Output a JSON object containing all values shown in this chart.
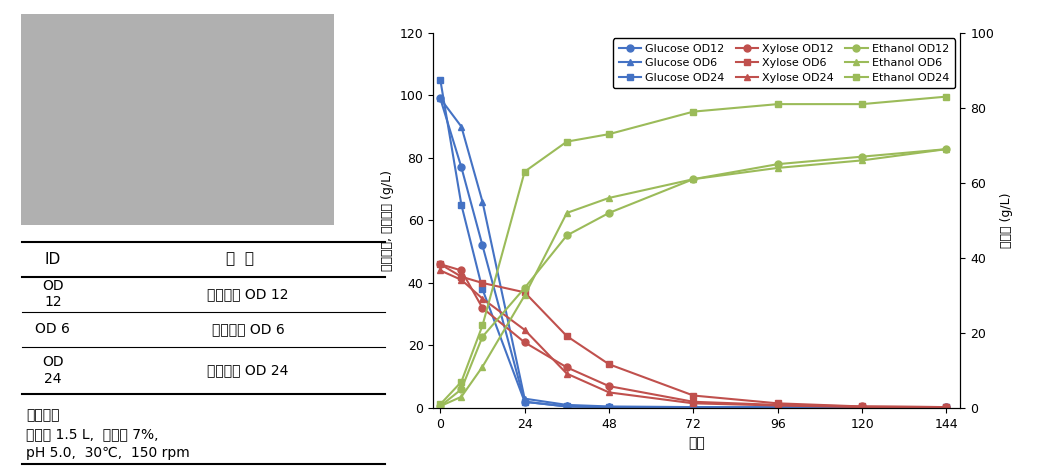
{
  "time": [
    0,
    6,
    12,
    24,
    36,
    48,
    72,
    96,
    120,
    144
  ],
  "glucose_od12": [
    99,
    77,
    52,
    2,
    0.5,
    0.3,
    0.2,
    0.2,
    0.2,
    0.2
  ],
  "glucose_od6": [
    99,
    90,
    66,
    3,
    1.0,
    0.5,
    0.3,
    0.2,
    0.2,
    0.2
  ],
  "glucose_od24": [
    105,
    65,
    38,
    2,
    0.5,
    0.3,
    0.2,
    0.2,
    0.2,
    0.2
  ],
  "xylose_od12": [
    46,
    44,
    32,
    21,
    13,
    7,
    2,
    1,
    0.5,
    0.3
  ],
  "xylose_od6": [
    46,
    42,
    40,
    37,
    23,
    14,
    4,
    1.5,
    0.5,
    0.3
  ],
  "xylose_od24": [
    44,
    41,
    35,
    25,
    11,
    5,
    1.5,
    0.8,
    0.3,
    0.2
  ],
  "ethanol_od12": [
    0.5,
    5,
    19,
    32,
    46,
    52,
    61,
    65,
    67,
    69
  ],
  "ethanol_od6": [
    0.5,
    3,
    11,
    30,
    52,
    56,
    61,
    64,
    66,
    69
  ],
  "ethanol_od24": [
    1,
    7,
    22,
    63,
    71,
    73,
    79,
    81,
    81,
    83
  ],
  "glucose_color": "#4472c4",
  "xylose_color": "#c0504d",
  "ethanol_color": "#9bbb59",
  "legend_entries": [
    "Glucose OD12",
    "Glucose OD6",
    "Glucose OD24",
    "Xylose OD12",
    "Xylose OD6",
    "Xylose OD24",
    "Ethanol OD12",
    "Ethanol OD6",
    "Ethanol OD24"
  ],
  "ylabel_left": "글루코스, 자일로스 (g/L)",
  "ylabel_right": "에타놀 (g/L)",
  "xlabel": "시간",
  "ylim_left": [
    0,
    120
  ],
  "ylim_right": [
    0,
    100
  ],
  "yticks_left": [
    0,
    20,
    40,
    60,
    80,
    100,
    120
  ],
  "yticks_right": [
    0,
    20,
    40,
    60,
    80,
    100
  ],
  "xticks": [
    0,
    24,
    48,
    72,
    96,
    120,
    144
  ],
  "table_header": [
    "ID",
    "조  건"
  ],
  "table_rows": [
    [
      "OD\n12",
      "종균농도 OD 12"
    ],
    [
      "OD 6",
      "종균농도 OD 6"
    ],
    [
      "OD\n24",
      "종균농도 OD 24"
    ]
  ],
  "common_cond_title": "공통조건",
  "common_cond_lines": [
    "당화액 1.5 L,  접종량 7%,",
    "pH 5.0,  30℃,  150 rpm"
  ]
}
